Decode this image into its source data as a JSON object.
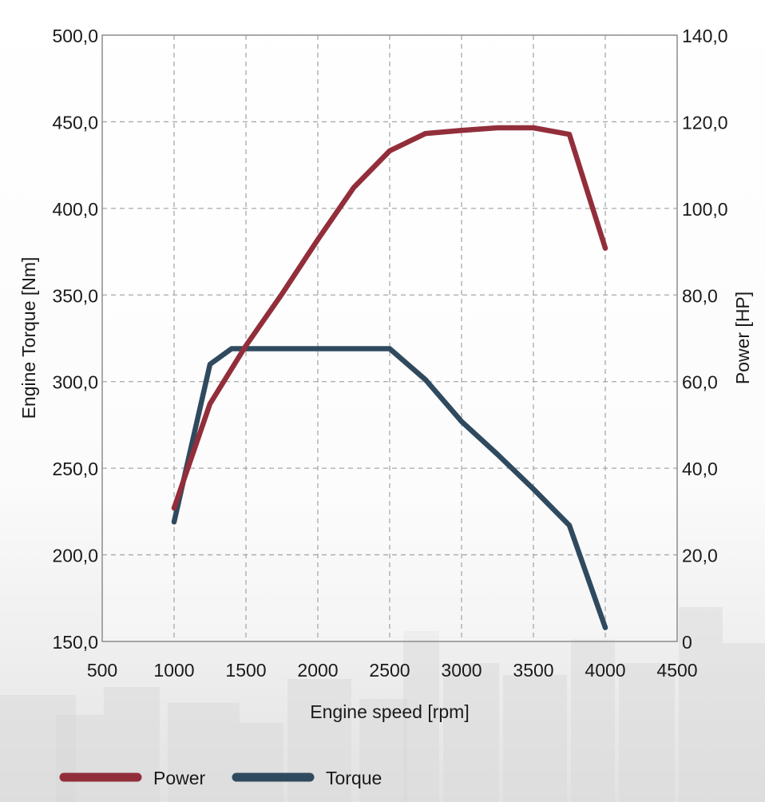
{
  "chart_data": {
    "type": "line",
    "title": "",
    "xlabel": "Engine speed [rpm]",
    "ylabel_left": "Engine Torque [Nm]",
    "ylabel_right": "Power [HP]",
    "xlim": [
      500,
      4500
    ],
    "ylim_left": [
      150,
      500
    ],
    "ylim_right": [
      0,
      140
    ],
    "x_ticks": [
      "500",
      "1000",
      "1500",
      "2000",
      "2500",
      "3000",
      "3500",
      "4000",
      "4500"
    ],
    "y_left_ticks": [
      "150,0",
      "200,0",
      "250,0",
      "300,0",
      "350,0",
      "400,0",
      "450,0",
      "500,0"
    ],
    "y_right_ticks": [
      "0",
      "20,0",
      "40,0",
      "60,0",
      "80,0",
      "100,0",
      "120,0",
      "140,0"
    ],
    "grid": true,
    "legend_position": "bottom-left",
    "series": [
      {
        "name": "Power",
        "axis": "right",
        "color": "#922e3a",
        "x": [
          1000,
          1250,
          1500,
          1750,
          2000,
          2250,
          2500,
          2750,
          3000,
          3250,
          3500,
          3750,
          4000
        ],
        "values": [
          30.8,
          54.9,
          68.3,
          80.2,
          92.8,
          104.8,
          113.3,
          117.3,
          118.0,
          118.6,
          118.6,
          117.1,
          90.8
        ]
      },
      {
        "name": "Torque",
        "axis": "left",
        "color": "#2f4a5f",
        "x": [
          1000,
          1250,
          1400,
          1500,
          2000,
          2500,
          2750,
          3000,
          3250,
          3500,
          3750,
          4000
        ],
        "values": [
          219,
          310,
          319,
          319,
          319,
          319,
          301,
          277,
          258,
          238,
          217,
          158
        ]
      }
    ]
  }
}
